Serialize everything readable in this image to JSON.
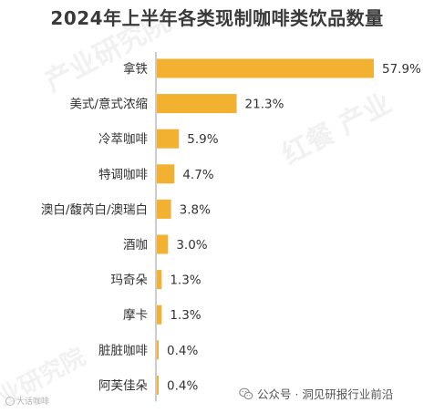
{
  "watermarks": [
    "产业研究院",
    "红餐 产业",
    "业研究院"
  ],
  "footer": {
    "icon": "wechat-icon",
    "text": "公众号 · 洞见研报行业前沿"
  },
  "corner_credit": "大话咖啡",
  "chart_data": {
    "type": "bar",
    "orientation": "horizontal",
    "title": "2024年上半年各类现制咖啡类饮品数量",
    "categories": [
      "拿铁",
      "美式/意式浓缩",
      "冷萃咖啡",
      "特调咖啡",
      "澳白/馥芮白/澳瑞白",
      "酒咖",
      "玛奇朵",
      "摩卡",
      "脏脏咖啡",
      "阿芙佳朵"
    ],
    "values": [
      57.9,
      21.3,
      5.9,
      4.7,
      3.8,
      3.0,
      1.3,
      1.3,
      0.4,
      0.4
    ],
    "value_labels": [
      "57.9%",
      "21.3%",
      "5.9%",
      "4.7%",
      "3.8%",
      "3.0%",
      "1.3%",
      "1.3%",
      "0.4%",
      "0.4%"
    ],
    "unit": "%",
    "xlim": [
      0,
      57.9
    ],
    "grid": false,
    "legend": "none",
    "colors": {
      "bar": "#F2B131",
      "axis": "#9a9a9a",
      "label": "#333333"
    }
  }
}
